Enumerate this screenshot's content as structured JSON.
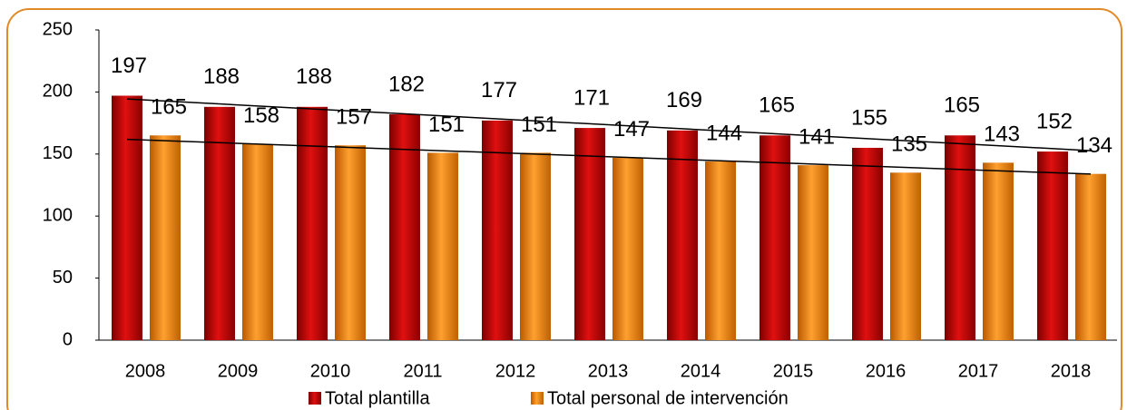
{
  "chart_data": {
    "type": "bar",
    "categories": [
      "2008",
      "2009",
      "2010",
      "2011",
      "2012",
      "2013",
      "2014",
      "2015",
      "2016",
      "2017",
      "2018"
    ],
    "series": [
      {
        "name": "Total plantilla",
        "color": "#c00000",
        "values": [
          197,
          188,
          188,
          182,
          177,
          171,
          169,
          165,
          155,
          165,
          152
        ]
      },
      {
        "name": "Total personal de intervención",
        "color": "#f08a1a",
        "values": [
          165,
          158,
          157,
          151,
          151,
          147,
          144,
          141,
          135,
          143,
          134
        ]
      }
    ],
    "ylim": [
      0,
      250
    ],
    "yticks": [
      0,
      50,
      100,
      150,
      200,
      250
    ],
    "trendline": true,
    "legend": "bottom"
  }
}
